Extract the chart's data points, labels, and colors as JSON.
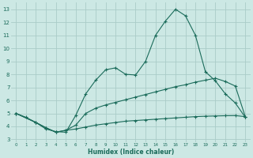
{
  "xlabel": "Humidex (Indice chaleur)",
  "xlim": [
    0,
    23
  ],
  "ylim": [
    3,
    13
  ],
  "yticks": [
    3,
    4,
    5,
    6,
    7,
    8,
    9,
    10,
    11,
    12,
    13
  ],
  "xticks": [
    0,
    1,
    2,
    3,
    4,
    5,
    6,
    7,
    8,
    9,
    10,
    11,
    12,
    13,
    14,
    15,
    16,
    17,
    18,
    19,
    20,
    21,
    22,
    23
  ],
  "bg_color": "#cce8e4",
  "grid_color": "#aaccc8",
  "line_color": "#1a6b5a",
  "line1_x": [
    0,
    1,
    2,
    3,
    4,
    5,
    6,
    7,
    8,
    9,
    10,
    11,
    12,
    13,
    14,
    15,
    16,
    17,
    18,
    19,
    20,
    21,
    22,
    23
  ],
  "line1_y": [
    5.0,
    4.7,
    4.3,
    3.8,
    3.6,
    3.55,
    4.85,
    6.5,
    7.55,
    8.35,
    8.5,
    8.0,
    7.95,
    9.0,
    11.0,
    12.1,
    13.0,
    12.5,
    11.0,
    8.2,
    7.5,
    6.5,
    5.8,
    4.7
  ],
  "line2_x": [
    0,
    2,
    3,
    4,
    5,
    6,
    7,
    8,
    9,
    10,
    11,
    12,
    13,
    14,
    15,
    16,
    17,
    18,
    19,
    20,
    21,
    22,
    23
  ],
  "line2_y": [
    5.0,
    4.3,
    3.9,
    3.55,
    3.7,
    4.1,
    5.0,
    5.4,
    5.65,
    5.85,
    6.05,
    6.25,
    6.45,
    6.65,
    6.85,
    7.05,
    7.2,
    7.4,
    7.55,
    7.7,
    7.45,
    7.1,
    4.75
  ],
  "line3_x": [
    0,
    2,
    3,
    4,
    5,
    6,
    7,
    8,
    9,
    10,
    11,
    12,
    13,
    14,
    15,
    16,
    17,
    18,
    19,
    20,
    21,
    22,
    23
  ],
  "line3_y": [
    5.0,
    4.3,
    3.9,
    3.55,
    3.7,
    3.8,
    3.95,
    4.1,
    4.2,
    4.3,
    4.4,
    4.45,
    4.5,
    4.55,
    4.6,
    4.65,
    4.7,
    4.75,
    4.78,
    4.8,
    4.82,
    4.83,
    4.75
  ]
}
